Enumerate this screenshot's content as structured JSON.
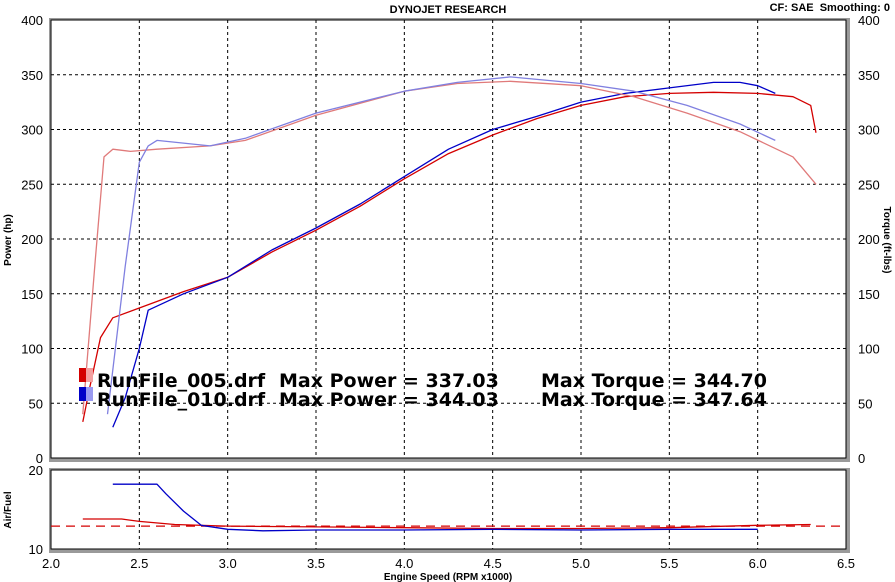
{
  "header": {
    "title": "DYNOJET RESEARCH",
    "settings": "CF: SAE  Smoothing: 0"
  },
  "legend": [
    {
      "file": "RunFile_005.drf",
      "max_power_label": "Max Power = 337.03",
      "max_torque_label": "Max Torque = 344.70",
      "color": "#d40000"
    },
    {
      "file": "RunFile_010.drf",
      "max_power_label": "Max Power = 344.03",
      "max_torque_label": "Max Torque = 347.64",
      "color": "#0000c8"
    }
  ],
  "chart_data": [
    {
      "type": "line",
      "xlabel": "",
      "ylabel": "Power (hp)",
      "y2label": "Torque (ft-lbs)",
      "xlim": [
        2.0,
        6.5
      ],
      "ylim": [
        0,
        400
      ],
      "y2lim": [
        0,
        400
      ],
      "x_ticks": [
        "2.0",
        "2.5",
        "3.0",
        "3.5",
        "4.0",
        "4.5",
        "5.0",
        "5.5",
        "6.0",
        "6.5"
      ],
      "y_ticks": [
        "0",
        "50",
        "100",
        "150",
        "200",
        "250",
        "300",
        "350",
        "400"
      ],
      "grid": true,
      "series": [
        {
          "name": "RunFile_005.drf Power",
          "color": "#d40000",
          "style": "solid",
          "x": [
            2.18,
            2.22,
            2.28,
            2.35,
            2.5,
            2.75,
            3.0,
            3.25,
            3.5,
            3.75,
            4.0,
            4.25,
            4.5,
            4.75,
            5.0,
            5.25,
            5.5,
            5.75,
            6.0,
            6.2,
            6.3,
            6.33
          ],
          "y": [
            33,
            65,
            110,
            128,
            137,
            152,
            165,
            188,
            208,
            230,
            255,
            278,
            295,
            310,
            322,
            330,
            333,
            334,
            333,
            330,
            322,
            297
          ]
        },
        {
          "name": "RunFile_010.drf Power",
          "color": "#0000c8",
          "style": "solid",
          "x": [
            2.35,
            2.42,
            2.5,
            2.55,
            2.75,
            3.0,
            3.25,
            3.5,
            3.75,
            4.0,
            4.25,
            4.5,
            4.75,
            5.0,
            5.25,
            5.5,
            5.75,
            5.9,
            6.0,
            6.1
          ],
          "y": [
            28,
            55,
            100,
            135,
            150,
            165,
            190,
            210,
            232,
            257,
            282,
            300,
            312,
            325,
            333,
            338,
            343,
            343,
            340,
            333
          ]
        },
        {
          "name": "RunFile_005.drf Torque",
          "color": "#e07a7a",
          "style": "solid",
          "x": [
            2.18,
            2.25,
            2.3,
            2.35,
            2.45,
            2.6,
            2.9,
            3.1,
            3.5,
            4.0,
            4.3,
            4.6,
            5.0,
            5.3,
            5.6,
            5.9,
            6.2,
            6.33
          ],
          "y": [
            40,
            180,
            275,
            282,
            280,
            282,
            285,
            290,
            313,
            335,
            342,
            344,
            340,
            330,
            315,
            298,
            275,
            250
          ]
        },
        {
          "name": "RunFile_010.drf Torque",
          "color": "#8080e0",
          "style": "solid",
          "x": [
            2.32,
            2.42,
            2.5,
            2.55,
            2.6,
            2.9,
            3.1,
            3.5,
            4.0,
            4.3,
            4.6,
            5.0,
            5.3,
            5.6,
            5.9,
            6.1
          ],
          "y": [
            40,
            175,
            270,
            285,
            290,
            285,
            292,
            315,
            335,
            343,
            348,
            342,
            335,
            322,
            305,
            290
          ]
        }
      ]
    },
    {
      "type": "line",
      "xlabel": "Engine Speed (RPM x1000)",
      "ylabel": "Air/Fuel",
      "xlim": [
        2.0,
        6.5
      ],
      "ylim": [
        10,
        20
      ],
      "y_ticks": [
        "10",
        "20"
      ],
      "grid": true,
      "reference_line": {
        "y": 12.9,
        "color": "#d40000",
        "style": "dashed"
      },
      "series": [
        {
          "name": "RunFile_005.drf Air/Fuel",
          "color": "#d40000",
          "style": "solid",
          "x": [
            2.18,
            2.4,
            2.5,
            2.7,
            3.0,
            3.5,
            4.0,
            4.5,
            5.0,
            5.5,
            6.0,
            6.3
          ],
          "y": [
            13.8,
            13.8,
            13.5,
            13.1,
            12.9,
            12.8,
            12.7,
            12.6,
            12.6,
            12.7,
            13.0,
            13.1
          ]
        },
        {
          "name": "RunFile_010.drf Air/Fuel",
          "color": "#0000c8",
          "style": "solid",
          "x": [
            2.35,
            2.6,
            2.65,
            2.75,
            2.85,
            3.0,
            3.2,
            3.5,
            4.0,
            4.5,
            5.0,
            5.5,
            6.0
          ],
          "y": [
            18.2,
            18.2,
            17.0,
            14.8,
            13.0,
            12.5,
            12.3,
            12.4,
            12.4,
            12.5,
            12.4,
            12.5,
            12.5
          ]
        }
      ]
    }
  ]
}
